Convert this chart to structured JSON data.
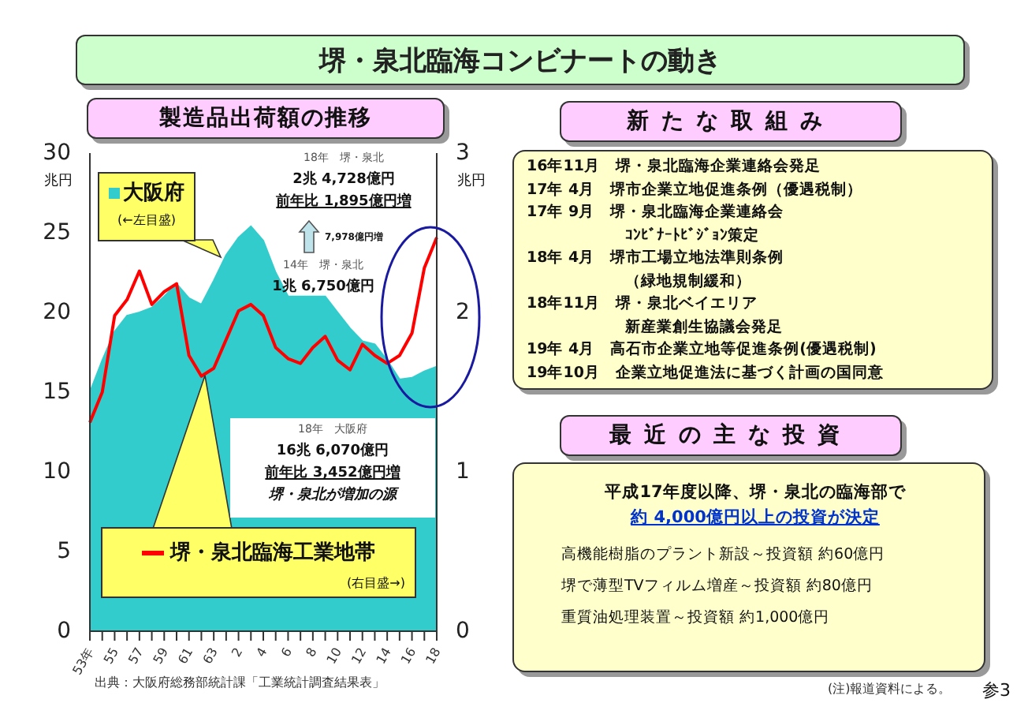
{
  "chart_data": [
    {
      "type": "area",
      "title": "堺・泉北臨海コンビナートの動き",
      "subtitle": "製造品出荷額の推移",
      "ylabel": "兆円",
      "y2label": "兆円",
      "categories": [
        "53年",
        null,
        "55",
        null,
        "57",
        null,
        "59",
        null,
        "61",
        null,
        "63",
        null,
        "2",
        null,
        "4",
        null,
        "6",
        null,
        "8",
        null,
        "10",
        null,
        "12",
        null,
        "14",
        null,
        "16",
        null,
        "18"
      ],
      "series": [
        {
          "name": "大阪府",
          "type": "area",
          "color": "#33cccc",
          "values": [
            15.0,
            17.0,
            18.8,
            19.8,
            20.0,
            20.3,
            21.0,
            21.8,
            20.9,
            20.5,
            22.0,
            23.6,
            24.7,
            25.4,
            24.5,
            22.5,
            21.0,
            21.0,
            21.0,
            21.0,
            20.0,
            19.0,
            18.2,
            18.0,
            17.0,
            15.8,
            15.9,
            16.3,
            16.6
          ]
        },
        {
          "name": "堺・泉北臨海工業地帯",
          "type": "line",
          "axis": "y2",
          "color": "#ff0000",
          "values": [
            1.31,
            1.5,
            1.98,
            2.08,
            2.26,
            2.05,
            2.13,
            2.18,
            1.73,
            1.6,
            1.65,
            1.83,
            2.01,
            2.05,
            1.98,
            1.78,
            1.71,
            1.68,
            1.78,
            1.85,
            1.7,
            1.64,
            1.8,
            1.73,
            1.68,
            1.73,
            1.87,
            2.28,
            2.47
          ]
        }
      ],
      "legend": "left",
      "ylim": [
        0,
        30
      ],
      "yticks": [
        0,
        5,
        10,
        15,
        20,
        25,
        30
      ],
      "y2lim": [
        0,
        3
      ],
      "y2ticks": [
        0,
        1,
        2,
        3
      ],
      "annotations": [
        "(←左目盛)",
        "(右目盛→)",
        "18年　堺・泉北",
        "2兆 4,728億円",
        "前年比 1,895億円増",
        "7,978億円増",
        "14年　堺・泉北",
        "1兆 6,750億円",
        "18年　大阪府",
        "16兆 6,070億円",
        "前年比 3,452億円増",
        "堺・泉北が増加の源",
        "出典：大阪府総務部統計課「工業統計調査結果表」"
      ]
    },
    {
      "type": "other",
      "title": "新たな取組み",
      "annotations": [
        "16年11月　堺・泉北臨海企業連絡会発足",
        "17年 4月　堺市企業立地促進条例（優遇税制）",
        "17年 9月　堺・泉北臨海企業連絡会",
        "ｺﾝﾋﾞﾅｰﾄﾋﾞｼﾞｮﾝ策定",
        "18年 4月　堺市工場立地法準則条例",
        "（緑地規制緩和）",
        "18年11月　堺・泉北ベイエリア",
        "新産業創生協議会発足",
        "19年 4月　高石市企業立地等促進条例(優遇税制)",
        "19年10月　企業立地促進法に基づく計画の国同意"
      ]
    },
    {
      "type": "other",
      "title": "最近の主な投資",
      "annotations": [
        "平成17年度以降、堺・泉北の臨海部で",
        "約 4,000億円以上の投資が決定",
        "高機能樹脂のプラント新設～投資額 約60億円",
        "堺で薄型TVフィルム増産～投資額 約80億円",
        "重質油処理装置～投資額 約1,000億円",
        "(注)報道資料による。",
        "参3"
      ]
    }
  ]
}
